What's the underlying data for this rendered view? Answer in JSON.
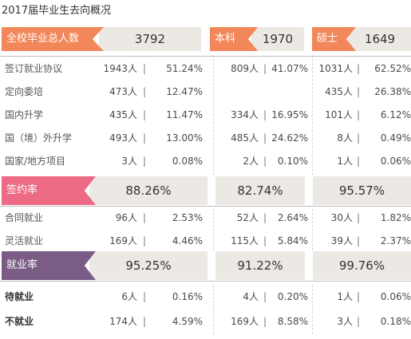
{
  "title": "2017届毕业生去向概况",
  "header": {
    "total_label": "全校毕业总人数",
    "total_value": "3792",
    "undergrad_label": "本科",
    "undergrad_value": "1970",
    "master_label": "硕士",
    "master_value": "1649"
  },
  "rows_a": [
    {
      "label": "签订就业协议",
      "all": {
        "count": "1943人",
        "pct": "51.24%"
      },
      "ug": {
        "count": "809人",
        "pct": "41.07%"
      },
      "ms": {
        "count": "1031人",
        "pct": "62.52%"
      }
    },
    {
      "label": "定向委培",
      "all": {
        "count": "473人",
        "pct": "12.47%"
      },
      "ug": null,
      "ms": {
        "count": "435人",
        "pct": "26.38%"
      }
    },
    {
      "label": "国内升学",
      "all": {
        "count": "435人",
        "pct": "11.47%"
      },
      "ug": {
        "count": "334人",
        "pct": "16.95%"
      },
      "ms": {
        "count": "101人",
        "pct": "6.12%"
      }
    },
    {
      "label": "国（境）外升学",
      "all": {
        "count": "493人",
        "pct": "13.00%"
      },
      "ug": {
        "count": "485人",
        "pct": "24.62%"
      },
      "ms": {
        "count": "8人",
        "pct": "0.49%"
      }
    },
    {
      "label": "国家/地方项目",
      "all": {
        "count": "3人",
        "pct": "0.08%"
      },
      "ug": {
        "count": "2人",
        "pct": "0.10%"
      },
      "ms": {
        "count": "1人",
        "pct": "0.06%"
      }
    }
  ],
  "sign_rate": {
    "label": "签约率",
    "all": "88.26%",
    "ug": "82.74%",
    "ms": "95.57%"
  },
  "rows_b": [
    {
      "label": "合同就业",
      "all": {
        "count": "96人",
        "pct": "2.53%"
      },
      "ug": {
        "count": "52人",
        "pct": "2.64%"
      },
      "ms": {
        "count": "30人",
        "pct": "1.82%"
      }
    },
    {
      "label": "灵活就业",
      "all": {
        "count": "169人",
        "pct": "4.46%"
      },
      "ug": {
        "count": "115人",
        "pct": "5.84%"
      },
      "ms": {
        "count": "39人",
        "pct": "2.37%"
      }
    }
  ],
  "employment_rate": {
    "label": "就业率",
    "all": "95.25%",
    "ug": "91.22%",
    "ms": "99.76%"
  },
  "rows_c": [
    {
      "label": "待就业",
      "all": {
        "count": "6人",
        "pct": "0.16%"
      },
      "ug": {
        "count": "4人",
        "pct": "0.20%"
      },
      "ms": {
        "count": "1人",
        "pct": "0.06%"
      }
    },
    {
      "label": "不就业",
      "all": {
        "count": "174人",
        "pct": "4.59%"
      },
      "ug": {
        "count": "169人",
        "pct": "8.58%"
      },
      "ms": {
        "count": "3人",
        "pct": "0.18%"
      }
    }
  ],
  "separator": "|",
  "colors": {
    "orange": "#f2885a",
    "pink": "#ee6b86",
    "purple": "#7a5c86",
    "band_bg": "#ece8e4"
  }
}
